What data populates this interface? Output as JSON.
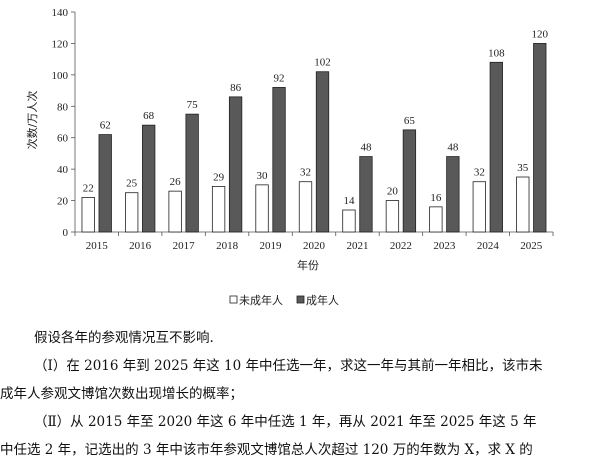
{
  "chart_data": {
    "type": "bar",
    "categories": [
      "2015",
      "2016",
      "2017",
      "2018",
      "2019",
      "2020",
      "2021",
      "2022",
      "2023",
      "2024",
      "2025"
    ],
    "series": [
      {
        "name": "未成年人",
        "values": [
          22,
          25,
          26,
          29,
          30,
          32,
          14,
          20,
          16,
          32,
          35
        ],
        "color": "#ffffff"
      },
      {
        "name": "成年人",
        "values": [
          62,
          68,
          75,
          86,
          92,
          102,
          48,
          65,
          48,
          108,
          120
        ],
        "color": "#595959"
      }
    ],
    "xlabel": "年份",
    "ylabel": "次数/万人次",
    "ylim": [
      0,
      140
    ],
    "yticks": [
      0,
      20,
      40,
      60,
      80,
      100,
      120,
      140
    ],
    "grid": false,
    "legend_position": "bottom"
  },
  "problem": {
    "line1": "假设各年的参观情况互不影响.",
    "line2": "（Ⅰ）在 2016 年到 2025 年这 10 年中任选一年，求这一年与其前一年相比，该市未",
    "line3": "成年人参观文博馆次数出现增长的概率；",
    "line4": "（Ⅱ）从 2015 年至 2020 年这 6 年中任选 1 年，再从 2021 年至 2025 年这 5 年",
    "line5": "中任选 2 年，记选出的 3 年中该市年参观文博馆总人次超过 120 万的年数为 X，求 X 的"
  }
}
